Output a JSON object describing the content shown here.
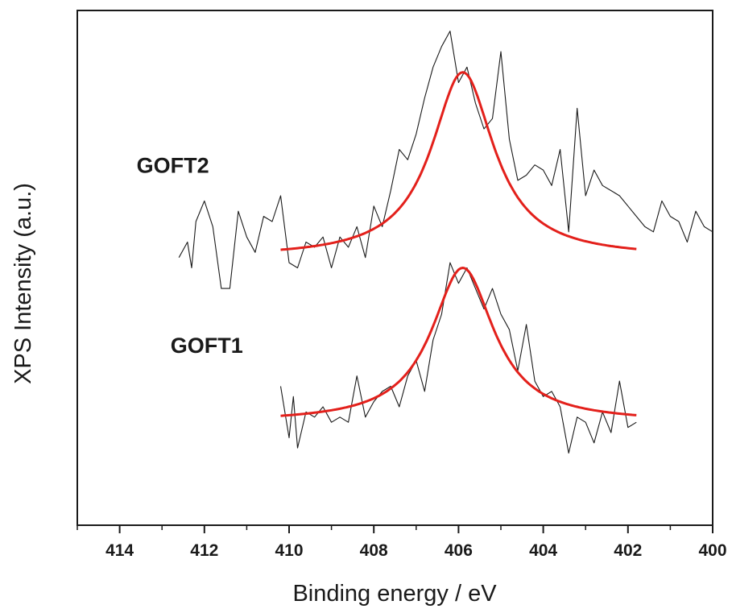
{
  "chart_data": {
    "type": "line",
    "xlabel": "Binding energy / eV",
    "ylabel": "XPS Intensity (a.u.)",
    "xlim": [
      415,
      400
    ],
    "x_reversed": true,
    "xticks": [
      414,
      412,
      410,
      408,
      406,
      404,
      402,
      400
    ],
    "xtick_labels": [
      "414",
      "412",
      "410",
      "408",
      "406",
      "404",
      "402",
      "400"
    ],
    "ylim": [
      0,
      10
    ],
    "yticks_shown": false,
    "grid": false,
    "legend": "none",
    "fit_color": "#e3201b",
    "raw_color": "#1a1a1a",
    "series": [
      {
        "name": "GOFT2",
        "label_at": [
          413.6,
          6.85
        ],
        "raw": {
          "x": [
            412.6,
            412.4,
            412.3,
            412.2,
            412.0,
            411.8,
            411.6,
            411.4,
            411.2,
            411.0,
            410.8,
            410.6,
            410.4,
            410.2,
            410.0,
            409.8,
            409.6,
            409.4,
            409.2,
            409.0,
            408.8,
            408.6,
            408.4,
            408.2,
            408.0,
            407.8,
            407.6,
            407.4,
            407.2,
            407.0,
            406.8,
            406.6,
            406.4,
            406.2,
            406.0,
            405.8,
            405.6,
            405.4,
            405.2,
            405.0,
            404.8,
            404.6,
            404.4,
            404.2,
            404.0,
            403.8,
            403.6,
            403.4,
            403.2,
            403.0,
            402.8,
            402.6,
            402.4,
            402.2,
            402.0,
            401.8,
            401.6,
            401.4,
            401.2,
            401.0,
            400.8,
            400.6,
            400.4,
            400.2,
            400.0
          ],
          "y": [
            5.2,
            5.5,
            5.0,
            5.9,
            6.3,
            5.8,
            4.6,
            4.6,
            6.1,
            5.6,
            5.3,
            6.0,
            5.9,
            6.4,
            5.1,
            5.0,
            5.5,
            5.4,
            5.6,
            5.0,
            5.6,
            5.4,
            5.8,
            5.2,
            6.2,
            5.8,
            6.5,
            7.3,
            7.1,
            7.6,
            8.3,
            8.9,
            9.3,
            9.6,
            8.6,
            8.9,
            8.2,
            7.7,
            7.9,
            9.2,
            7.5,
            6.7,
            6.8,
            7.0,
            6.9,
            6.6,
            7.3,
            5.7,
            8.1,
            6.4,
            6.9,
            6.6,
            6.5,
            6.4,
            6.2,
            6.0,
            5.8,
            5.7,
            6.3,
            6.0,
            5.9,
            5.5,
            6.1,
            5.8,
            5.7
          ]
        },
        "fit": {
          "center": 405.9,
          "baseline": 5.2,
          "amplitude": 3.6,
          "hwhm": 0.9,
          "x_range": [
            410.2,
            401.8
          ]
        }
      },
      {
        "name": "GOFT1",
        "label_at": [
          412.8,
          3.35
        ],
        "raw": {
          "x": [
            410.2,
            410.0,
            409.9,
            409.8,
            409.6,
            409.4,
            409.2,
            409.0,
            408.8,
            408.6,
            408.4,
            408.2,
            408.0,
            407.8,
            407.6,
            407.4,
            407.2,
            407.0,
            406.8,
            406.6,
            406.4,
            406.2,
            406.0,
            405.8,
            405.6,
            405.4,
            405.2,
            405.0,
            404.8,
            404.6,
            404.4,
            404.2,
            404.0,
            403.8,
            403.6,
            403.4,
            403.2,
            403.0,
            402.8,
            402.6,
            402.4,
            402.2,
            402.0,
            401.8
          ],
          "y": [
            2.7,
            1.7,
            2.5,
            1.5,
            2.2,
            2.1,
            2.3,
            2.0,
            2.1,
            2.0,
            2.9,
            2.1,
            2.4,
            2.6,
            2.7,
            2.3,
            2.9,
            3.2,
            2.6,
            3.6,
            4.1,
            5.1,
            4.7,
            5.0,
            4.6,
            4.2,
            4.6,
            4.1,
            3.8,
            3.0,
            3.9,
            2.8,
            2.5,
            2.6,
            2.3,
            1.4,
            2.1,
            2.0,
            1.6,
            2.2,
            1.8,
            2.8,
            1.9,
            2.0
          ]
        },
        "fit": {
          "center": 405.9,
          "baseline": 2.0,
          "amplitude": 3.0,
          "hwhm": 0.9,
          "x_range": [
            410.2,
            401.8
          ]
        }
      }
    ]
  }
}
